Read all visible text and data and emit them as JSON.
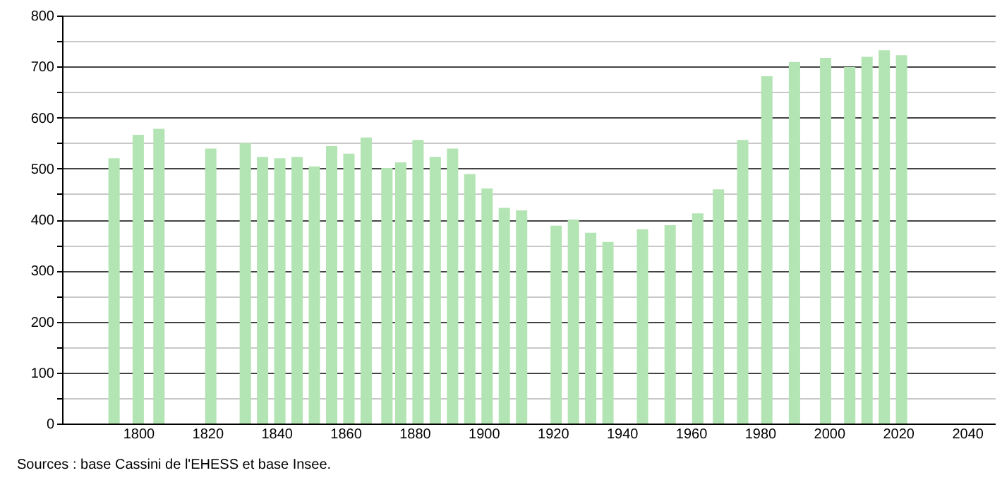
{
  "chart_data": {
    "type": "bar",
    "x": [
      1793,
      1800,
      1806,
      1821,
      1831,
      1836,
      1841,
      1846,
      1851,
      1856,
      1861,
      1866,
      1872,
      1876,
      1881,
      1886,
      1891,
      1896,
      1901,
      1906,
      1911,
      1921,
      1926,
      1931,
      1936,
      1946,
      1954,
      1962,
      1968,
      1975,
      1982,
      1990,
      1999,
      2006,
      2011,
      2016,
      2021
    ],
    "values": [
      520,
      566,
      578,
      539,
      550,
      523,
      520,
      523,
      504,
      544,
      529,
      561,
      501,
      512,
      556,
      523,
      539,
      489,
      461,
      423,
      418,
      388,
      400,
      374,
      356,
      381,
      389,
      412,
      459,
      556,
      681,
      709,
      717,
      699,
      719,
      732,
      722
    ],
    "color": "#b3e4b3",
    "xlim": [
      1780,
      2046
    ],
    "xticks": [
      1800,
      1820,
      1840,
      1860,
      1880,
      1900,
      1920,
      1940,
      1960,
      1980,
      2000,
      2020,
      2040
    ],
    "ylim": [
      0,
      800
    ],
    "yticks": [
      0,
      {
        "value": 50,
        "label": null
      },
      100,
      {
        "value": 150,
        "label": null
      },
      200,
      {
        "value": 250,
        "label": null
      },
      300,
      {
        "value": 350,
        "label": null
      },
      400,
      {
        "value": 450,
        "label": null
      },
      500,
      {
        "value": 550,
        "label": null
      },
      600,
      {
        "value": 650,
        "label": null
      },
      700,
      {
        "value": 750,
        "label": null
      },
      800
    ],
    "grid": "y",
    "annotations": [
      "Sources : base Cassini de l'EHESS et base Insee."
    ]
  }
}
